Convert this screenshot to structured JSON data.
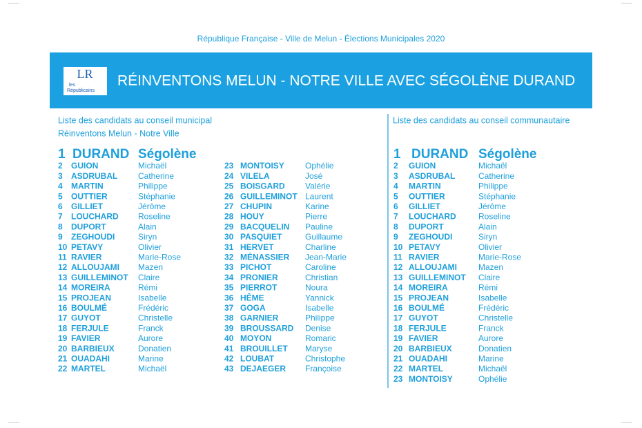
{
  "header": {
    "caption": "République Française - Ville de Melun - Élections Municipales 2020",
    "title": "RÉINVENTONS MELUN - NOTRE VILLE AVEC SÉGOLÈNE DURAND",
    "logo": {
      "mark": "LR",
      "line1": "les",
      "line2": "Républicains"
    }
  },
  "municipal": {
    "heading": "Liste des candidats au conseil municipal",
    "subheading": "Réinventons Melun - Notre Ville",
    "candidates": [
      [
        1,
        "DURAND",
        "Ségolène"
      ],
      [
        2,
        "GUION",
        "Michaël"
      ],
      [
        3,
        "ASDRUBAL",
        "Catherine"
      ],
      [
        4,
        "MARTIN",
        "Philippe"
      ],
      [
        5,
        "OUTTIER",
        "Stéphanie"
      ],
      [
        6,
        "GILLIET",
        "Jérôme"
      ],
      [
        7,
        "LOUCHARD",
        "Roseline"
      ],
      [
        8,
        "DUPORT",
        "Alain"
      ],
      [
        9,
        "ZEGHOUDI",
        "Siryn"
      ],
      [
        10,
        "PETAVY",
        "Olivier"
      ],
      [
        11,
        "RAVIER",
        "Marie-Rose"
      ],
      [
        12,
        "ALLOUJAMI",
        "Mazen"
      ],
      [
        13,
        "GUILLEMINOT",
        "Claire"
      ],
      [
        14,
        "MOREIRA",
        "Rémi"
      ],
      [
        15,
        "PROJEAN",
        "Isabelle"
      ],
      [
        16,
        "BOULMÉ",
        "Frédéric"
      ],
      [
        17,
        "GUYOT",
        "Christelle"
      ],
      [
        18,
        "FERJULE",
        "Franck"
      ],
      [
        19,
        "FAVIER",
        "Aurore"
      ],
      [
        20,
        "BARBIEUX",
        "Donatien"
      ],
      [
        21,
        "OUADAHI",
        "Marine"
      ],
      [
        22,
        "MARTEL",
        "Michaël"
      ],
      [
        23,
        "MONTOISY",
        "Ophélie"
      ],
      [
        24,
        "VILELA",
        "José"
      ],
      [
        25,
        "BOISGARD",
        "Valérie"
      ],
      [
        26,
        "GUILLEMINOT",
        "Laurent"
      ],
      [
        27,
        "CHUPIN",
        "Karine"
      ],
      [
        28,
        "HOUY",
        "Pierre"
      ],
      [
        29,
        "BACQUELIN",
        "Pauline"
      ],
      [
        30,
        "PASQUIET",
        "Guillaume"
      ],
      [
        31,
        "HERVET",
        "Charline"
      ],
      [
        32,
        "MÉNASSIER",
        "Jean-Marie"
      ],
      [
        33,
        "PICHOT",
        "Caroline"
      ],
      [
        34,
        "PRONIER",
        "Christian"
      ],
      [
        35,
        "PIERROT",
        "Noura"
      ],
      [
        36,
        "HÊME",
        "Yannick"
      ],
      [
        37,
        "GOGA",
        "Isabelle"
      ],
      [
        38,
        "GARNIER",
        "Philippe"
      ],
      [
        39,
        "BROUSSARD",
        "Denise"
      ],
      [
        40,
        "MOYON",
        "Romaric"
      ],
      [
        41,
        "BROUILLET",
        "Maryse"
      ],
      [
        42,
        "LOUBAT",
        "Christophe"
      ],
      [
        43,
        "DEJAEGER",
        "Françoise"
      ]
    ]
  },
  "community": {
    "heading": "Liste des candidats au conseil communautaire",
    "candidates": [
      [
        1,
        "DURAND",
        "Ségolène"
      ],
      [
        2,
        "GUION",
        "Michaël"
      ],
      [
        3,
        "ASDRUBAL",
        "Catherine"
      ],
      [
        4,
        "MARTIN",
        "Philippe"
      ],
      [
        5,
        "OUTTIER",
        "Stéphanie"
      ],
      [
        6,
        "GILLIET",
        "Jérôme"
      ],
      [
        7,
        "LOUCHARD",
        "Roseline"
      ],
      [
        8,
        "DUPORT",
        "Alain"
      ],
      [
        9,
        "ZEGHOUDI",
        "Siryn"
      ],
      [
        10,
        "PETAVY",
        "Olivier"
      ],
      [
        11,
        "RAVIER",
        "Marie-Rose"
      ],
      [
        12,
        "ALLOUJAMI",
        "Mazen"
      ],
      [
        13,
        "GUILLEMINOT",
        "Claire"
      ],
      [
        14,
        "MOREIRA",
        "Rémi"
      ],
      [
        15,
        "PROJEAN",
        "Isabelle"
      ],
      [
        16,
        "BOULMÉ",
        "Frédéric"
      ],
      [
        17,
        "GUYOT",
        "Christelle"
      ],
      [
        18,
        "FERJULE",
        "Franck"
      ],
      [
        19,
        "FAVIER",
        "Aurore"
      ],
      [
        20,
        "BARBIEUX",
        "Donatien"
      ],
      [
        21,
        "OUADAHI",
        "Marine"
      ],
      [
        22,
        "MARTEL",
        "Michaël"
      ],
      [
        23,
        "MONTOISY",
        "Ophélie"
      ]
    ]
  }
}
